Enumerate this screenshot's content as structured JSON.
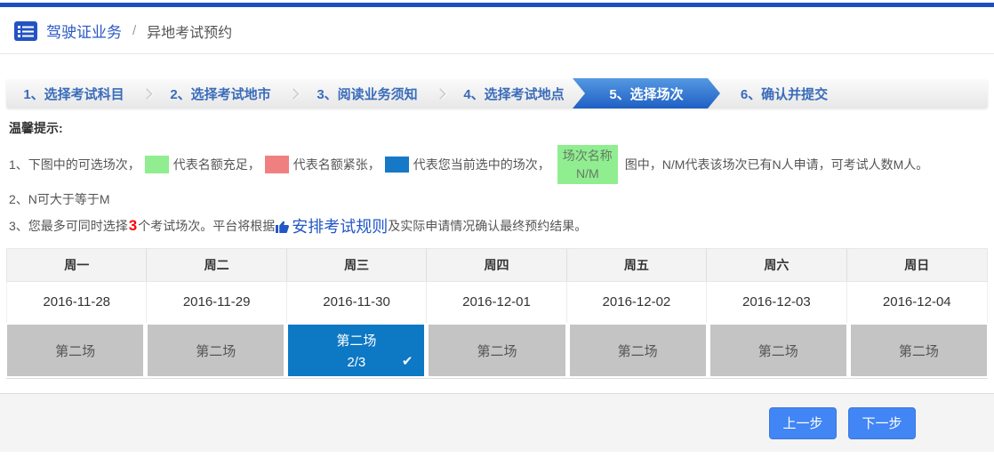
{
  "header": {
    "title": "驾驶证业务",
    "separator": "/",
    "subtitle": "异地考试预约"
  },
  "steps": [
    {
      "label": "1、选择考试科目",
      "active": false
    },
    {
      "label": "2、选择考试地市",
      "active": false
    },
    {
      "label": "3、阅读业务须知",
      "active": false
    },
    {
      "label": "4、选择考试地点",
      "active": false
    },
    {
      "label": "5、选择场次",
      "active": true
    },
    {
      "label": "6、确认并提交",
      "active": false
    }
  ],
  "tips": {
    "title": "温馨提示:",
    "line1": {
      "part1": "1、下图中的可选场次，",
      "green_label": "代表名额充足，",
      "red_label": "代表名额紧张，",
      "blue_label": "代表您当前选中的场次，",
      "sample_line1": "场次名称",
      "sample_line2": "N/M",
      "part2": "图中，N/M代表该场次已有N人申请，可考试人数M人。"
    },
    "line2": "2、N可大于等于M",
    "line3": {
      "part1": "3、您最多可同时选择",
      "highlight": "3",
      "part2": "个考试场次。平台将根据",
      "link": "安排考试规则",
      "part3": "及实际申请情况确认最终预约结果。"
    }
  },
  "schedule": {
    "weekdays": [
      "周一",
      "周二",
      "周三",
      "周四",
      "周五",
      "周六",
      "周日"
    ],
    "dates": [
      "2016-11-28",
      "2016-11-29",
      "2016-11-30",
      "2016-12-01",
      "2016-12-02",
      "2016-12-03",
      "2016-12-04"
    ],
    "sessions": [
      {
        "name": "第二场",
        "selected": false
      },
      {
        "name": "第二场",
        "selected": false
      },
      {
        "name": "第二场",
        "selected": true,
        "quota": "2/3"
      },
      {
        "name": "第二场",
        "selected": false
      },
      {
        "name": "第二场",
        "selected": false
      },
      {
        "name": "第二场",
        "selected": false
      },
      {
        "name": "第二场",
        "selected": false
      }
    ]
  },
  "footer": {
    "prev_label": "上一步",
    "next_label": "下一步"
  },
  "icons": {
    "check": "✔"
  },
  "colors": {
    "top_accent": "#1d4dc2",
    "accent_blue": "#2a58c5",
    "active_step_blue": "#2e6fd0",
    "selected_cell_blue": "#0d78c4",
    "session_gray": "#c4c4c4",
    "legend_green": "#90ee90",
    "legend_red": "#f08080",
    "legend_blue": "#1579c8",
    "button_blue": "#4285f4",
    "highlight_red": "#ff0000"
  }
}
